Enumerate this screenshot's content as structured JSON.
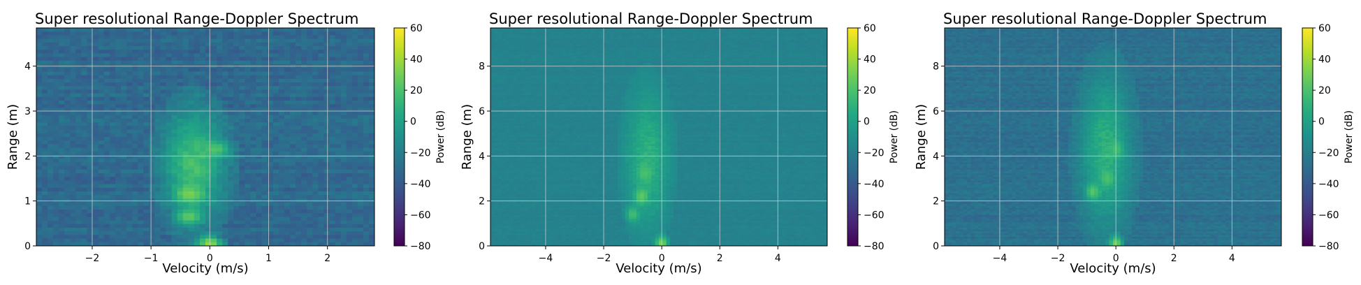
{
  "colormap": "viridis",
  "chart_data": [
    {
      "type": "heatmap",
      "title": "Super resolutional Range-Doppler Spectrum",
      "xlabel": "Velocity (m/s)",
      "ylabel": "Range (m)",
      "xlim": [
        -2.95,
        2.8
      ],
      "ylim": [
        0,
        4.85
      ],
      "xticks": [
        -2,
        -1,
        0,
        1,
        2
      ],
      "yticks": [
        0,
        1,
        2,
        3,
        4
      ],
      "grid": true,
      "colorbar": {
        "label": "Power (dB)",
        "range": [
          -80,
          60
        ],
        "ticks": [
          60,
          40,
          20,
          0,
          -20,
          -40,
          -60,
          -80
        ]
      },
      "background_db": -32,
      "noise_db": 12,
      "target_extent": {
        "velocity": [
          -0.85,
          0.3
        ],
        "range": [
          0.65,
          2.9
        ]
      },
      "target_peak_db": 18,
      "hotspots": [
        {
          "velocity": -0.35,
          "range": 1.15,
          "power_db": 32
        },
        {
          "velocity": -0.35,
          "range": 0.65,
          "power_db": 26
        },
        {
          "velocity": 0.1,
          "range": 2.15,
          "power_db": 22
        },
        {
          "velocity": 0.0,
          "range": 0.05,
          "power_db": 38
        }
      ]
    },
    {
      "type": "heatmap",
      "title": "Super resolutional Range-Doppler Spectrum",
      "xlabel": "Velocity (m/s)",
      "ylabel": "Range (m)",
      "xlim": [
        -5.9,
        5.7
      ],
      "ylim": [
        0,
        9.7
      ],
      "xticks": [
        -4,
        -2,
        0,
        2,
        4
      ],
      "yticks": [
        0,
        2,
        4,
        6,
        8
      ],
      "grid": true,
      "colorbar": {
        "label": "Power (dB)",
        "range": [
          -80,
          60
        ],
        "ticks": [
          60,
          40,
          20,
          0,
          -20,
          -40,
          -60,
          -80
        ]
      },
      "background_db": -18,
      "noise_db": 4,
      "target_extent": {
        "velocity": [
          -1.3,
          0.3
        ],
        "range": [
          1.2,
          6.5
        ]
      },
      "target_peak_db": 10,
      "hotspots": [
        {
          "velocity": -0.7,
          "range": 2.2,
          "power_db": 26
        },
        {
          "velocity": -0.6,
          "range": 3.2,
          "power_db": 20
        },
        {
          "velocity": -1.0,
          "range": 1.4,
          "power_db": 18
        },
        {
          "velocity": 0.0,
          "range": 0.1,
          "power_db": 32
        }
      ]
    },
    {
      "type": "heatmap",
      "title": "Super resolutional Range-Doppler Spectrum",
      "xlabel": "Velocity (m/s)",
      "ylabel": "Range (m)",
      "xlim": [
        -5.9,
        5.7
      ],
      "ylim": [
        0,
        9.7
      ],
      "xticks": [
        -4,
        -2,
        0,
        2,
        4
      ],
      "yticks": [
        0,
        2,
        4,
        6,
        8
      ],
      "grid": true,
      "colorbar": {
        "label": "Power (dB)",
        "range": [
          -80,
          60
        ],
        "ticks": [
          60,
          40,
          20,
          0,
          -20,
          -40,
          -60,
          -80
        ]
      },
      "background_db": -28,
      "noise_db": 9,
      "target_extent": {
        "velocity": [
          -1.3,
          0.6
        ],
        "range": [
          1.2,
          7.2
        ]
      },
      "target_peak_db": 10,
      "hotspots": [
        {
          "velocity": -0.8,
          "range": 2.4,
          "power_db": 24
        },
        {
          "velocity": -0.3,
          "range": 3.0,
          "power_db": 20
        },
        {
          "velocity": 0.0,
          "range": 4.3,
          "power_db": 18
        },
        {
          "velocity": 0.0,
          "range": 0.1,
          "power_db": 32
        }
      ]
    }
  ]
}
